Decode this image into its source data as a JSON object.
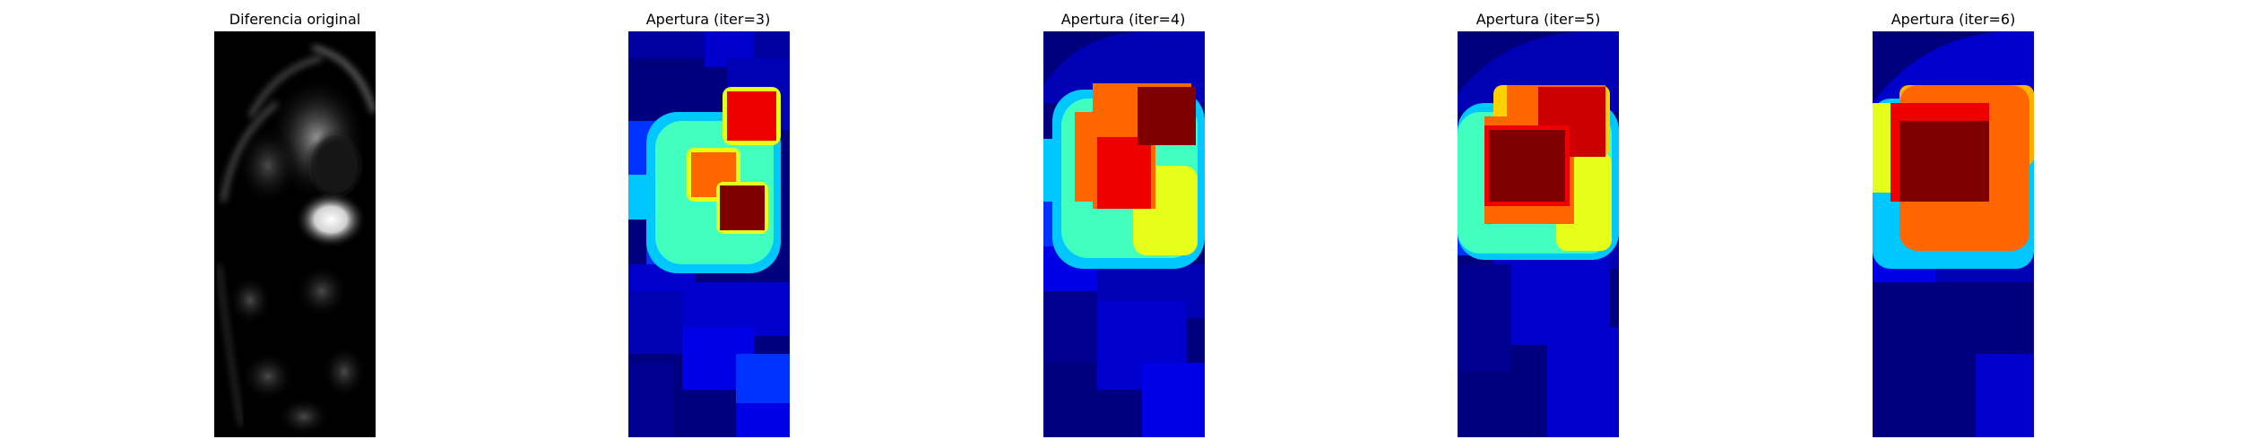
{
  "panels": [
    {
      "title": "Diferencia original",
      "colormap": "gray"
    },
    {
      "title": "Apertura (iter=3)",
      "colormap": "jet"
    },
    {
      "title": "Apertura (iter=4)",
      "colormap": "jet"
    },
    {
      "title": "Apertura (iter=5)",
      "colormap": "jet"
    },
    {
      "title": "Apertura (iter=6)",
      "colormap": "jet"
    }
  ],
  "colors": {
    "background": "#ffffff",
    "jet_dark_blue": "#00007f",
    "jet_blue": "#0000cd",
    "jet_mid_blue": "#0033ff",
    "jet_cyan": "#00c8ff",
    "jet_aqua": "#40ffbf",
    "jet_yellow": "#e5ff1a",
    "jet_orange": "#ff6600",
    "jet_red": "#ee0000",
    "jet_dark_red": "#7f0000"
  }
}
